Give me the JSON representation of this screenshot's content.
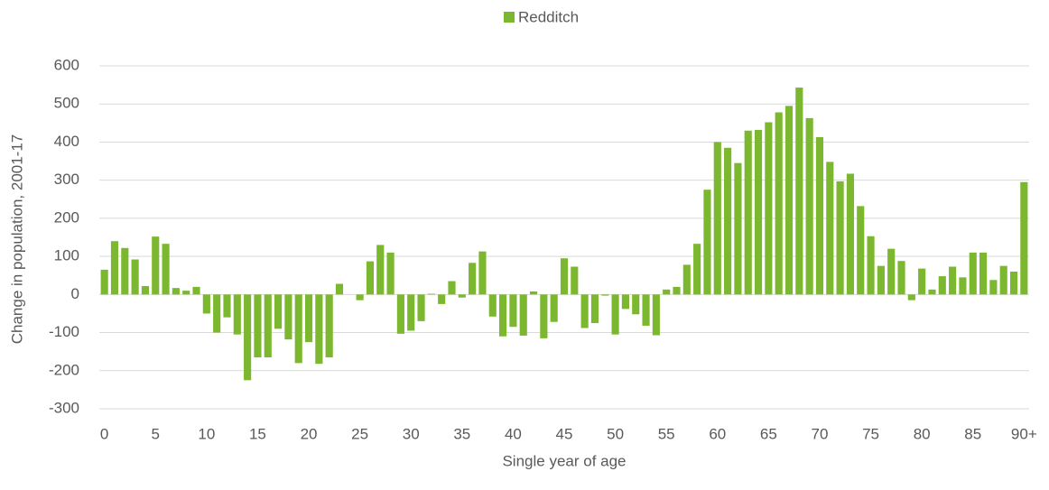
{
  "chart_data": {
    "type": "bar",
    "x_label": "Single year of age",
    "y_label": "Change in population, 2001-17",
    "categories": [
      "0",
      null,
      null,
      null,
      null,
      "5",
      null,
      null,
      null,
      null,
      "10",
      null,
      null,
      null,
      null,
      "15",
      null,
      null,
      null,
      null,
      "20",
      null,
      null,
      null,
      null,
      "25",
      null,
      null,
      null,
      null,
      "30",
      null,
      null,
      null,
      null,
      "35",
      null,
      null,
      null,
      null,
      "40",
      null,
      null,
      null,
      null,
      "45",
      null,
      null,
      null,
      null,
      "50",
      null,
      null,
      null,
      null,
      "55",
      null,
      null,
      null,
      null,
      "60",
      null,
      null,
      null,
      null,
      "65",
      null,
      null,
      null,
      null,
      "70",
      null,
      null,
      null,
      null,
      "75",
      null,
      null,
      null,
      null,
      "80",
      null,
      null,
      null,
      null,
      "85",
      null,
      null,
      null,
      null,
      "90+"
    ],
    "series": [
      {
        "name": "Redditch",
        "color": "#7cb82f",
        "values": [
          65,
          140,
          122,
          92,
          22,
          152,
          133,
          17,
          10,
          20,
          -50,
          -100,
          -60,
          -105,
          -225,
          -165,
          -165,
          -90,
          -118,
          -180,
          -125,
          -182,
          -165,
          28,
          0,
          -15,
          87,
          130,
          110,
          -103,
          -95,
          -70,
          2,
          -25,
          35,
          -8,
          83,
          113,
          -58,
          -110,
          -85,
          -108,
          8,
          -115,
          -72,
          95,
          73,
          -88,
          -75,
          -3,
          -105,
          -38,
          -52,
          -82,
          -107,
          13,
          20,
          78,
          133,
          275,
          400,
          385,
          345,
          430,
          432,
          452,
          478,
          495,
          543,
          463,
          413,
          348,
          297,
          317,
          232,
          153,
          75,
          120,
          88,
          -15,
          68,
          13,
          48,
          73,
          45,
          110,
          110,
          38,
          75,
          60,
          295
        ]
      }
    ],
    "ylim": [
      -300,
      600
    ],
    "yticks": [
      -300,
      -200,
      -100,
      0,
      100,
      200,
      300,
      400,
      500,
      600
    ],
    "grid": true,
    "legend": "top"
  }
}
